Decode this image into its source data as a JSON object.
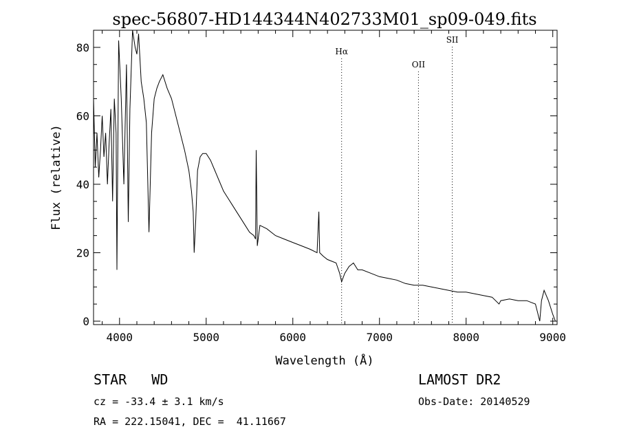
{
  "chart_data": {
    "type": "line",
    "title": "spec-56807-HD144344N402733M01_sp09-049.fits",
    "xlabel": "Wavelength (Å)",
    "ylabel": "Flux (relative)",
    "xlim": [
      3700,
      9050
    ],
    "ylim": [
      -1,
      85
    ],
    "x_ticks": [
      4000,
      5000,
      6000,
      7000,
      8000,
      9000
    ],
    "y_ticks": [
      0,
      20,
      40,
      60,
      80
    ],
    "grid": false,
    "lines": [
      {
        "label": "Hα",
        "x": 6563
      },
      {
        "label": "OII",
        "x": 7450
      },
      {
        "label": "SII",
        "x": 7840
      }
    ],
    "series": [
      {
        "x": [
          3700,
          3720,
          3740,
          3760,
          3780,
          3800,
          3820,
          3840,
          3860,
          3880,
          3900,
          3920,
          3940,
          3960,
          3970,
          3990,
          4020,
          4050,
          4080,
          4101,
          4120,
          4150,
          4180,
          4200,
          4220,
          4250,
          4280,
          4310,
          4340,
          4370,
          4400,
          4430,
          4460,
          4500,
          4550,
          4600,
          4650,
          4700,
          4750,
          4800,
          4830,
          4850,
          4861,
          4880,
          4900,
          4930,
          4960,
          5000,
          5050,
          5100,
          5150,
          5200,
          5250,
          5300,
          5350,
          5400,
          5450,
          5500,
          5550,
          5570,
          5577,
          5590,
          5620,
          5700,
          5800,
          5900,
          6000,
          6100,
          6200,
          6280,
          6300,
          6310,
          6350,
          6400,
          6450,
          6500,
          6540,
          6563,
          6600,
          6650,
          6700,
          6750,
          6800,
          6900,
          7000,
          7100,
          7200,
          7300,
          7400,
          7500,
          7600,
          7700,
          7800,
          7900,
          8000,
          8100,
          8200,
          8300,
          8380,
          8400,
          8500,
          8600,
          8700,
          8750,
          8800,
          8850,
          8870,
          8900,
          8950,
          9000,
          9030
        ],
        "y": [
          65,
          45,
          55,
          42,
          50,
          60,
          48,
          55,
          40,
          52,
          62,
          35,
          65,
          55,
          15,
          82,
          65,
          40,
          75,
          29,
          62,
          85,
          80,
          78,
          84,
          70,
          65,
          58,
          26,
          55,
          65,
          68,
          70,
          72,
          68,
          65,
          60,
          55,
          50,
          44,
          38,
          32,
          20,
          30,
          44,
          48,
          49,
          49,
          47,
          44,
          41,
          38,
          36,
          34,
          32,
          30,
          28,
          26,
          25,
          24,
          50,
          22,
          28,
          27,
          25,
          24,
          23,
          22,
          21,
          20,
          32,
          20,
          19,
          18,
          17.5,
          17,
          14,
          11.5,
          14,
          16,
          17,
          15,
          15,
          14,
          13,
          12.5,
          12,
          11,
          10.5,
          10.5,
          10,
          9.5,
          9,
          8.5,
          8.5,
          8,
          7.5,
          7,
          5,
          6,
          6.5,
          6,
          6,
          5.5,
          5,
          0,
          6,
          9,
          6,
          2,
          0
        ]
      }
    ]
  },
  "footer": {
    "left_line1": "STAR   WD",
    "right_line1": "LAMOST DR2",
    "left_line2": "cz = -33.4 ± 3.1 km/s",
    "right_line2": "Obs-Date: 20140529",
    "left_line3": "RA = 222.15041, DEC =  41.11667"
  }
}
